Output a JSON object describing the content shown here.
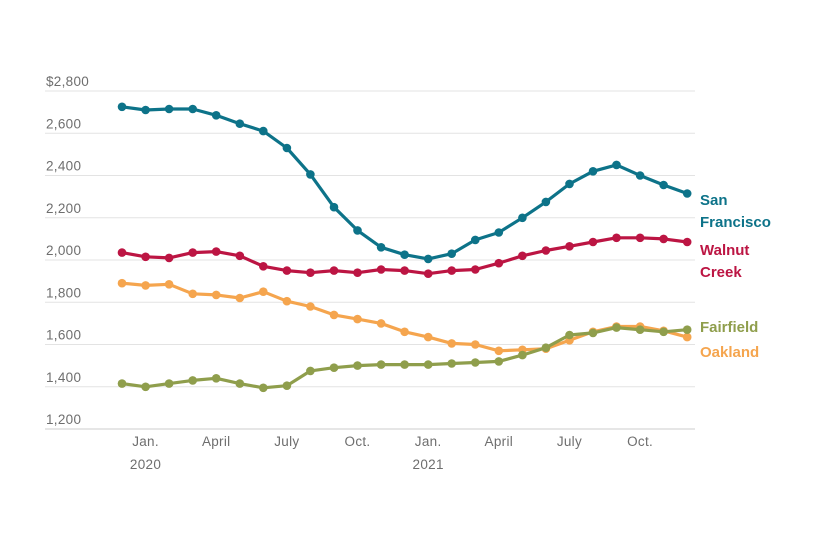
{
  "chart_data": {
    "type": "line",
    "title": "",
    "xlabel": "",
    "ylabel": "",
    "y_unit": "$ per month",
    "ylim": [
      1200,
      2800
    ],
    "grid": "horizontal",
    "legend_position": "right-of-line-ends",
    "x": [
      "Dec. 2019",
      "Jan. 2020",
      "Feb. 2020",
      "Mar. 2020",
      "Apr. 2020",
      "May 2020",
      "Jun. 2020",
      "Jul. 2020",
      "Aug. 2020",
      "Sep. 2020",
      "Oct. 2020",
      "Nov. 2020",
      "Dec. 2020",
      "Jan. 2021",
      "Feb. 2021",
      "Mar. 2021",
      "Apr. 2021",
      "May 2021",
      "Jun. 2021",
      "Jul. 2021",
      "Aug. 2021",
      "Sep. 2021",
      "Oct. 2021",
      "Nov. 2021",
      "Dec. 2021"
    ],
    "y_ticks": [
      {
        "label": "$2,800",
        "value": 2800
      },
      {
        "label": "2,600",
        "value": 2600
      },
      {
        "label": "2,400",
        "value": 2400
      },
      {
        "label": "2,200",
        "value": 2200
      },
      {
        "label": "2,000",
        "value": 2000
      },
      {
        "label": "1,800",
        "value": 1800
      },
      {
        "label": "1,600",
        "value": 1600
      },
      {
        "label": "1,400",
        "value": 1400
      },
      {
        "label": "1,200",
        "value": 1200
      }
    ],
    "x_ticks": [
      {
        "month_index": 1,
        "label": "Jan.",
        "year": "2020"
      },
      {
        "month_index": 4,
        "label": "April",
        "year": ""
      },
      {
        "month_index": 7,
        "label": "July",
        "year": ""
      },
      {
        "month_index": 10,
        "label": "Oct.",
        "year": ""
      },
      {
        "month_index": 13,
        "label": "Jan.",
        "year": "2021"
      },
      {
        "month_index": 16,
        "label": "April",
        "year": ""
      },
      {
        "month_index": 19,
        "label": "July",
        "year": ""
      },
      {
        "month_index": 22,
        "label": "Oct.",
        "year": ""
      }
    ],
    "series": [
      {
        "name": "San Francisco",
        "legend_lines": [
          "San",
          "Francisco"
        ],
        "color": "#0d7389",
        "values": [
          2725,
          2710,
          2715,
          2715,
          2685,
          2645,
          2610,
          2530,
          2405,
          2250,
          2140,
          2060,
          2025,
          2005,
          2030,
          2095,
          2130,
          2200,
          2275,
          2360,
          2420,
          2450,
          2400,
          2355,
          2315
        ]
      },
      {
        "name": "Walnut Creek",
        "legend_lines": [
          "Walnut",
          "Creek"
        ],
        "color": "#bc1543",
        "values": [
          2035,
          2015,
          2010,
          2035,
          2040,
          2020,
          1970,
          1950,
          1940,
          1950,
          1940,
          1955,
          1950,
          1935,
          1950,
          1955,
          1985,
          2020,
          2045,
          2065,
          2085,
          2105,
          2105,
          2100,
          2085
        ]
      },
      {
        "name": "Fairfield",
        "legend_lines": [
          "Fairfield"
        ],
        "color": "#8f9e4c",
        "values": [
          1415,
          1400,
          1415,
          1430,
          1440,
          1415,
          1395,
          1405,
          1475,
          1490,
          1500,
          1505,
          1505,
          1505,
          1510,
          1515,
          1520,
          1550,
          1585,
          1645,
          1655,
          1680,
          1670,
          1660,
          1670
        ]
      },
      {
        "name": "Oakland",
        "legend_lines": [
          "Oakland"
        ],
        "color": "#f5a54e",
        "values": [
          1890,
          1880,
          1885,
          1840,
          1835,
          1820,
          1850,
          1805,
          1780,
          1740,
          1720,
          1700,
          1660,
          1635,
          1605,
          1600,
          1570,
          1575,
          1580,
          1620,
          1660,
          1685,
          1685,
          1665,
          1635
        ]
      }
    ],
    "colors": {
      "axis_text": "#6e6e6e",
      "gridline": "#e3e3e3",
      "baseline": "#cccccc",
      "background": "#ffffff"
    }
  }
}
